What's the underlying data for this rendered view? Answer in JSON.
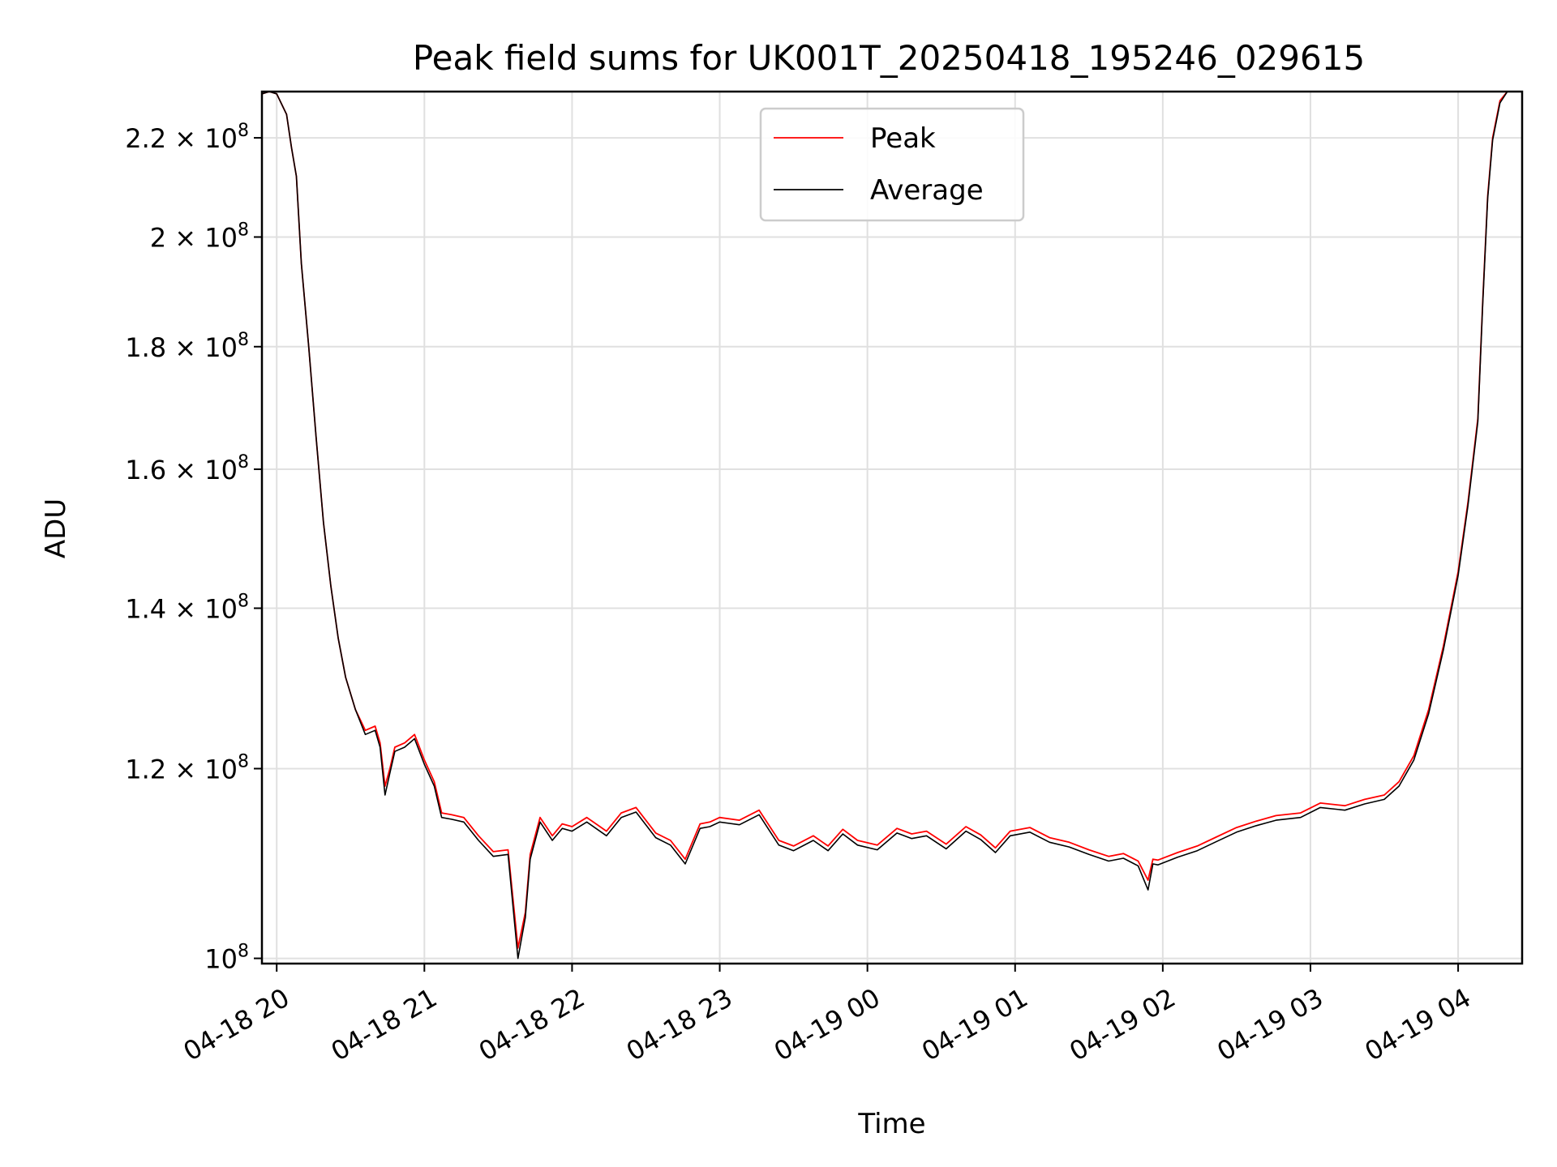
{
  "chart_data": {
    "type": "line",
    "title": "Peak field sums for UK001T_20250418_195246_029615",
    "xlabel": "Time",
    "ylabel": "ADU",
    "yscale": "log",
    "grid": true,
    "legend_position": "upper center",
    "xlim": [
      "2025-04-18 19:54",
      "2025-04-19 04:26"
    ],
    "ylim": [
      99500000,
      230000000
    ],
    "xticks": [
      {
        "t": "2025-04-18 20:00",
        "label": "04-18 20"
      },
      {
        "t": "2025-04-18 21:00",
        "label": "04-18 21"
      },
      {
        "t": "2025-04-18 22:00",
        "label": "04-18 22"
      },
      {
        "t": "2025-04-18 23:00",
        "label": "04-18 23"
      },
      {
        "t": "2025-04-19 00:00",
        "label": "04-19 00"
      },
      {
        "t": "2025-04-19 01:00",
        "label": "04-19 01"
      },
      {
        "t": "2025-04-19 02:00",
        "label": "04-19 02"
      },
      {
        "t": "2025-04-19 03:00",
        "label": "04-19 03"
      },
      {
        "t": "2025-04-19 04:00",
        "label": "04-19 04"
      }
    ],
    "yticks": [
      {
        "v": 100000000,
        "mant": "10",
        "exp": "8"
      },
      {
        "v": 120000000,
        "mant": "1.2 × 10",
        "exp": "8"
      },
      {
        "v": 140000000,
        "mant": "1.4 × 10",
        "exp": "8"
      },
      {
        "v": 160000000,
        "mant": "1.6 × 10",
        "exp": "8"
      },
      {
        "v": 180000000,
        "mant": "1.8 × 10",
        "exp": "8"
      },
      {
        "v": 200000000,
        "mant": "2 × 10",
        "exp": "8"
      },
      {
        "v": 220000000,
        "mant": "2.2 × 10",
        "exp": "8"
      }
    ],
    "x": [
      "2025-04-18 19:54",
      "2025-04-18 19:57",
      "2025-04-18 20:00",
      "2025-04-18 20:04",
      "2025-04-18 20:06",
      "2025-04-18 20:08",
      "2025-04-18 20:10",
      "2025-04-18 20:13",
      "2025-04-18 20:16",
      "2025-04-18 20:19",
      "2025-04-18 20:22",
      "2025-04-18 20:25",
      "2025-04-18 20:28",
      "2025-04-18 20:32",
      "2025-04-18 20:36",
      "2025-04-18 20:40",
      "2025-04-18 20:42",
      "2025-04-18 20:44",
      "2025-04-18 20:46",
      "2025-04-18 20:48",
      "2025-04-18 20:52",
      "2025-04-18 20:56",
      "2025-04-18 21:00",
      "2025-04-18 21:04",
      "2025-04-18 21:07",
      "2025-04-18 21:11",
      "2025-04-18 21:16",
      "2025-04-18 21:22",
      "2025-04-18 21:28",
      "2025-04-18 21:34",
      "2025-04-18 21:38",
      "2025-04-18 21:41",
      "2025-04-18 21:43",
      "2025-04-18 21:47",
      "2025-04-18 21:52",
      "2025-04-18 21:56",
      "2025-04-18 22:00",
      "2025-04-18 22:06",
      "2025-04-18 22:14",
      "2025-04-18 22:20",
      "2025-04-18 22:26",
      "2025-04-18 22:34",
      "2025-04-18 22:40",
      "2025-04-18 22:46",
      "2025-04-18 22:52",
      "2025-04-18 22:56",
      "2025-04-18 23:00",
      "2025-04-18 23:08",
      "2025-04-18 23:16",
      "2025-04-18 23:24",
      "2025-04-18 23:30",
      "2025-04-18 23:38",
      "2025-04-18 23:44",
      "2025-04-18 23:50",
      "2025-04-18 23:56",
      "2025-04-19 00:04",
      "2025-04-19 00:12",
      "2025-04-19 00:18",
      "2025-04-19 00:24",
      "2025-04-19 00:32",
      "2025-04-19 00:40",
      "2025-04-19 00:46",
      "2025-04-19 00:52",
      "2025-04-19 00:58",
      "2025-04-19 01:06",
      "2025-04-19 01:14",
      "2025-04-19 01:22",
      "2025-04-19 01:30",
      "2025-04-19 01:38",
      "2025-04-19 01:44",
      "2025-04-19 01:50",
      "2025-04-19 01:54",
      "2025-04-19 01:56",
      "2025-04-19 01:58",
      "2025-04-19 02:06",
      "2025-04-19 02:14",
      "2025-04-19 02:22",
      "2025-04-19 02:30",
      "2025-04-19 02:38",
      "2025-04-19 02:46",
      "2025-04-19 02:56",
      "2025-04-19 03:04",
      "2025-04-19 03:14",
      "2025-04-19 03:22",
      "2025-04-19 03:30",
      "2025-04-19 03:36",
      "2025-04-19 03:42",
      "2025-04-19 03:48",
      "2025-04-19 03:54",
      "2025-04-19 04:00",
      "2025-04-19 04:04",
      "2025-04-19 04:08",
      "2025-04-19 04:10",
      "2025-04-19 04:12",
      "2025-04-19 04:14",
      "2025-04-19 04:17",
      "2025-04-19 04:20",
      "2025-04-19 04:26"
    ],
    "series": [
      {
        "name": "Peak",
        "color": "#ff0000",
        "values": [
          229500000,
          230000000,
          229500000,
          225000000,
          218000000,
          212000000,
          195000000,
          180000000,
          165000000,
          152000000,
          143000000,
          136000000,
          131000000,
          127000000,
          124500000,
          125000000,
          123000000,
          118000000,
          120000000,
          122500000,
          123000000,
          124000000,
          121000000,
          118500000,
          115000000,
          114800000,
          114500000,
          112500000,
          110800000,
          111000000,
          101000000,
          104500000,
          110500000,
          114500000,
          112500000,
          113800000,
          113500000,
          114500000,
          113000000,
          115000000,
          115600000,
          112800000,
          112000000,
          110000000,
          113800000,
          114000000,
          114500000,
          114200000,
          115300000,
          112000000,
          111400000,
          112500000,
          111400000,
          113200000,
          112000000,
          111500000,
          113300000,
          112700000,
          113000000,
          111600000,
          113500000,
          112600000,
          111200000,
          113000000,
          113400000,
          112300000,
          111800000,
          111000000,
          110300000,
          110600000,
          109800000,
          107800000,
          110000000,
          109900000,
          110700000,
          111400000,
          112400000,
          113400000,
          114100000,
          114700000,
          115000000,
          116100000,
          115800000,
          116500000,
          117000000,
          118500000,
          121500000,
          127000000,
          135000000,
          145000000,
          155000000,
          168000000,
          188000000,
          208000000,
          220000000,
          228000000,
          230000000,
          230000000
        ]
      },
      {
        "name": "Average",
        "color": "#000000",
        "values": [
          229500000,
          230000000,
          229500000,
          225000000,
          218000000,
          212000000,
          195000000,
          180000000,
          165000000,
          152000000,
          143000000,
          136000000,
          131000000,
          127000000,
          124000000,
          124500000,
          122500000,
          117000000,
          119500000,
          122000000,
          122500000,
          123500000,
          120500000,
          118000000,
          114500000,
          114300000,
          114000000,
          112000000,
          110300000,
          110500000,
          100000000,
          104000000,
          110000000,
          114000000,
          112000000,
          113300000,
          113000000,
          114000000,
          112500000,
          114500000,
          115100000,
          112300000,
          111500000,
          109500000,
          113300000,
          113500000,
          114000000,
          113700000,
          114800000,
          111500000,
          110900000,
          112000000,
          110900000,
          112700000,
          111500000,
          111000000,
          112800000,
          112200000,
          112500000,
          111100000,
          113000000,
          112100000,
          110700000,
          112500000,
          112900000,
          111800000,
          111300000,
          110500000,
          109800000,
          110100000,
          109300000,
          106800000,
          109500000,
          109400000,
          110200000,
          110900000,
          111900000,
          112900000,
          113600000,
          114200000,
          114500000,
          115600000,
          115300000,
          116000000,
          116500000,
          118000000,
          121000000,
          126500000,
          134500000,
          144500000,
          154500000,
          167500000,
          187500000,
          207500000,
          219500000,
          227500000,
          230000000,
          230000000
        ]
      }
    ]
  }
}
